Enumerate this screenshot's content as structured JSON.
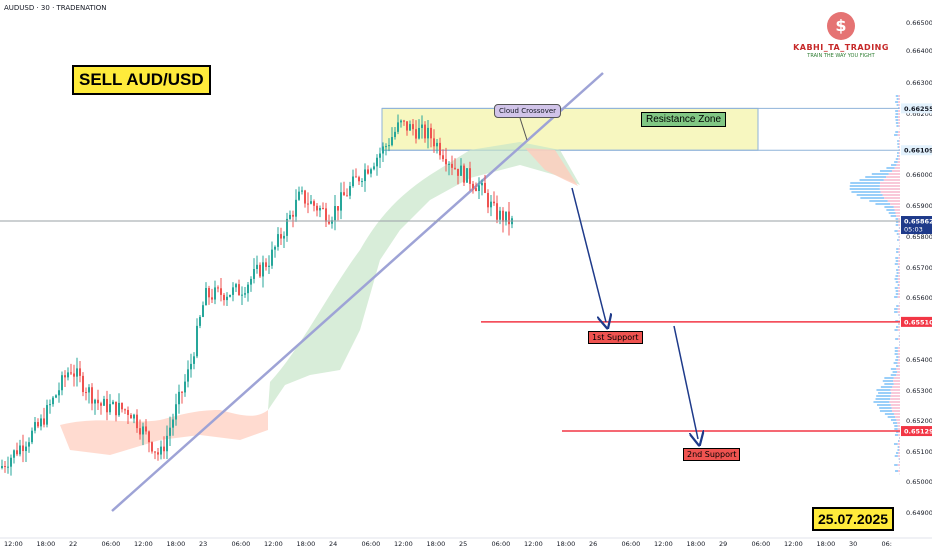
{
  "header": {
    "symbol": "AUDUSD · 30 · TRADENATION"
  },
  "annotations": {
    "title": "SELL AUD/USD",
    "date": "25.07.2025",
    "resistance_label": "Resistance Zone",
    "support1_label": "1st Support",
    "support2_label": "2nd Support",
    "callout": "Cloud Crossover"
  },
  "logo": {
    "name": "KABHI_TA_TRADING",
    "tagline": "TRAIN THE WAY YOU FIGHT",
    "icon": "dollar-coin-icon"
  },
  "colors": {
    "up": "#26a69a",
    "down": "#ef5350",
    "support": "#f23645",
    "resistance_fill": "#f7f7c0",
    "trendline": "#9ea3d6",
    "arrow": "#1e3a8a"
  },
  "chart_data": {
    "type": "candlestick",
    "y_axis": {
      "ticks": [
        "0.66500",
        "0.66400",
        "0.66300",
        "0.66200",
        "0.66000",
        "0.65900",
        "0.65800",
        "0.65700",
        "0.65600",
        "0.65400",
        "0.65300",
        "0.65200",
        "0.65100",
        "0.65000",
        "0.64900"
      ],
      "highlighted": [
        {
          "label": "0.66255"
        },
        {
          "label": "0.66109"
        },
        {
          "label": "0.65862",
          "sub": "05:03"
        },
        {
          "label": "0.65510"
        },
        {
          "label": "0.65129"
        }
      ],
      "ylim": [
        0.6485,
        0.6656
      ]
    },
    "x_axis": {
      "ticks": [
        "12:00",
        "18:00",
        "22",
        "06:00",
        "12:00",
        "18:00",
        "23",
        "06:00",
        "12:00",
        "18:00",
        "24",
        "06:00",
        "12:00",
        "18:00",
        "25",
        "06:00",
        "12:00",
        "18:00",
        "26",
        "06:00",
        "12:00",
        "18:00",
        "29",
        "06:00",
        "12:00",
        "18:00",
        "30",
        "06:"
      ]
    },
    "levels": {
      "resistance_zone": [
        0.66109,
        0.66255
      ],
      "support1": 0.6551,
      "support2": 0.65129,
      "current_price": 0.65862
    },
    "grid": false,
    "legend": "none"
  }
}
